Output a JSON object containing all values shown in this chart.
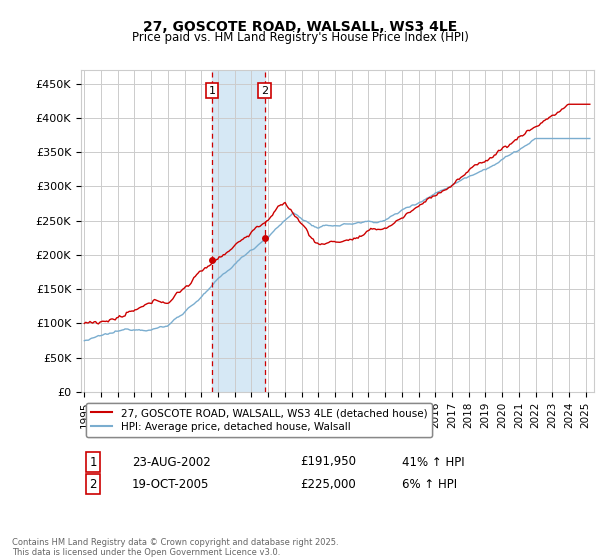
{
  "title": "27, GOSCOTE ROAD, WALSALL, WS3 4LE",
  "subtitle": "Price paid vs. HM Land Registry's House Price Index (HPI)",
  "ylabel_ticks": [
    "£0",
    "£50K",
    "£100K",
    "£150K",
    "£200K",
    "£250K",
    "£300K",
    "£350K",
    "£400K",
    "£450K"
  ],
  "ytick_values": [
    0,
    50000,
    100000,
    150000,
    200000,
    250000,
    300000,
    350000,
    400000,
    450000
  ],
  "ylim": [
    0,
    470000
  ],
  "xlim_start": 1994.8,
  "xlim_end": 2025.5,
  "t1_x": 2002.645,
  "t1_price": 191950,
  "t2_x": 2005.8,
  "t2_price": 225000,
  "shade_start": 2002.645,
  "shade_end": 2005.8,
  "legend_line1": "27, GOSCOTE ROAD, WALSALL, WS3 4LE (detached house)",
  "legend_line2": "HPI: Average price, detached house, Walsall",
  "table_row1_num": "1",
  "table_row1_date": "23-AUG-2002",
  "table_row1_price": "£191,950",
  "table_row1_hpi": "41% ↑ HPI",
  "table_row2_num": "2",
  "table_row2_date": "19-OCT-2005",
  "table_row2_price": "£225,000",
  "table_row2_hpi": "6% ↑ HPI",
  "footnote": "Contains HM Land Registry data © Crown copyright and database right 2025.\nThis data is licensed under the Open Government Licence v3.0.",
  "line_color_red": "#cc0000",
  "line_color_blue": "#7aadcf",
  "shade_color": "#d6e8f5",
  "vline_color": "#cc0000",
  "background_color": "#ffffff",
  "grid_color": "#cccccc"
}
